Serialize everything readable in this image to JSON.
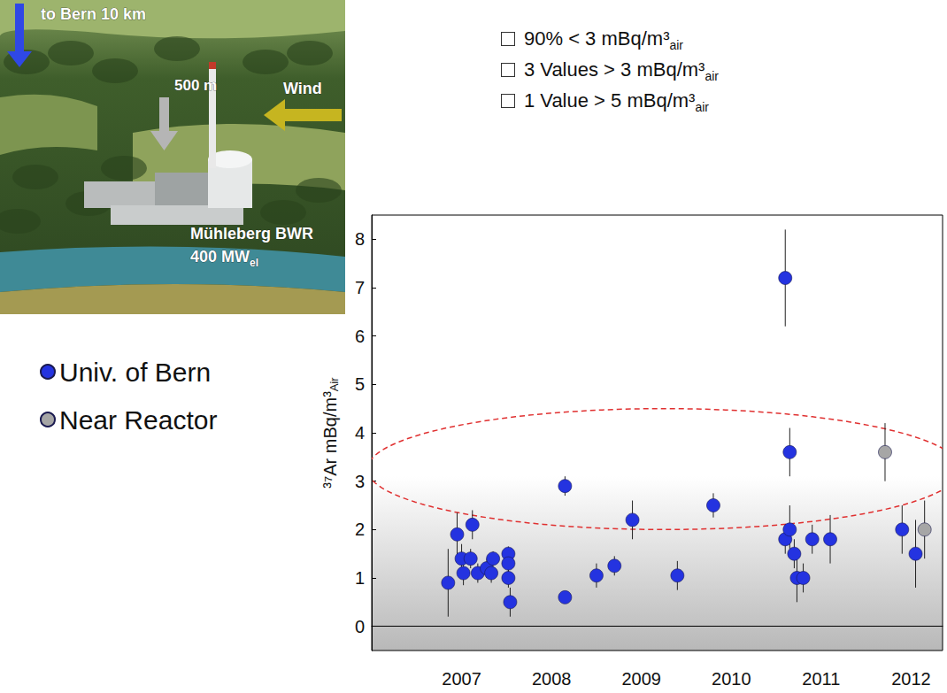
{
  "chart_data": {
    "type": "scatter",
    "ylabel": {
      "text": "³⁷Ar mBq/m³",
      "subscript": "Air"
    },
    "xlim": [
      2006.5,
      2012.85
    ],
    "xticks": [
      {
        "value": 2007.5,
        "label": "2007"
      },
      {
        "value": 2008.5,
        "label": "2008"
      },
      {
        "value": 2009.5,
        "label": "2009"
      },
      {
        "value": 2010.5,
        "label": "2010"
      },
      {
        "value": 2011.5,
        "label": "2011"
      },
      {
        "value": 2012.5,
        "label": "2012"
      }
    ],
    "ylim": [
      -0.5,
      8.5
    ],
    "yticks": [
      0,
      1,
      2,
      3,
      4,
      5,
      6,
      7,
      8
    ],
    "grid": false,
    "legend": "left",
    "series": [
      {
        "name": "Univ. of Bern",
        "color": "#2433e0",
        "marker": "circle",
        "x": [
          2007.35,
          2007.45,
          2007.5,
          2007.52,
          2007.6,
          2007.62,
          2007.68,
          2007.78,
          2007.83,
          2007.85,
          2008.02,
          2008.02,
          2008.02,
          2008.04,
          2008.65,
          2008.65,
          2009.0,
          2009.2,
          2009.4,
          2009.9,
          2010.3,
          2011.1,
          2011.15,
          2011.1,
          2011.15,
          2011.2,
          2011.23,
          2011.3,
          2011.4,
          2011.6,
          2012.4,
          2012.55
        ],
        "values": [
          0.9,
          1.9,
          1.4,
          1.1,
          1.4,
          2.1,
          1.1,
          1.2,
          1.1,
          1.4,
          1.5,
          1.3,
          1.0,
          0.5,
          0.6,
          2.9,
          1.05,
          1.25,
          2.2,
          1.05,
          2.5,
          7.2,
          3.6,
          1.8,
          2.0,
          1.5,
          1.0,
          1.0,
          1.8,
          1.8,
          2.0,
          1.5
        ],
        "errors": [
          0.7,
          0.45,
          0.3,
          0.25,
          0.2,
          0.3,
          0.2,
          0.2,
          0.2,
          0.15,
          0.15,
          0.2,
          0.2,
          0.3,
          0.1,
          0.2,
          0.25,
          0.2,
          0.4,
          0.3,
          0.25,
          1.0,
          0.5,
          0.3,
          0.5,
          0.3,
          0.5,
          0.3,
          0.3,
          0.5,
          0.5,
          0.7
        ]
      },
      {
        "name": "Near Reactor",
        "color": "#a6a6a6",
        "marker": "circle",
        "x": [
          2012.21,
          2012.65
        ],
        "values": [
          3.6,
          2.0
        ],
        "errors": [
          0.6,
          0.6
        ]
      }
    ],
    "highlight": {
      "shape": "ellipse",
      "center": [
        2009.75,
        3.25
      ],
      "radii": [
        3.3,
        1.25
      ],
      "color": "#e03030",
      "line_style": "dashed"
    },
    "notes": [
      {
        "text": "90% < 3 mBq/m³",
        "subscript": "air"
      },
      {
        "text": "3 Values > 3 mBq/m³",
        "subscript": "air"
      },
      {
        "text": "1 Value > 5 mBq/m³",
        "subscript": "air"
      }
    ],
    "photo_labels": [
      {
        "text": "to Bern 10 km"
      },
      {
        "text": "500 m"
      },
      {
        "text": "Wind"
      },
      {
        "text": "Mühleberg BWR"
      },
      {
        "text": "400 MW",
        "subscript": "el"
      }
    ]
  }
}
